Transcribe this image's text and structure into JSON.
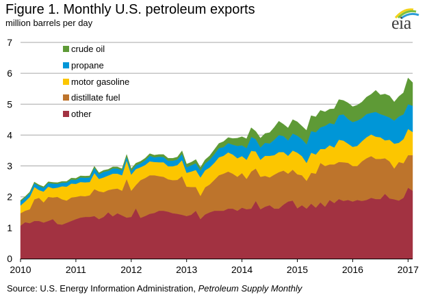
{
  "header": {
    "title": "Figure 1. Monthly U.S. petroleum exports",
    "subtitle": "million barrels per day",
    "logo_text": "eia"
  },
  "source": {
    "prefix": "Source: U.S. Energy Information Administration, ",
    "publication": "Petroleum Supply Monthly"
  },
  "chart_data": {
    "type": "area",
    "stacked": true,
    "title": "Figure 1. Monthly U.S. petroleum exports",
    "ylabel": "million barrels per day",
    "xlabel": "",
    "ylim": [
      0,
      7
    ],
    "yticks": [
      "0",
      "1",
      "2",
      "3",
      "4",
      "5",
      "6",
      "7"
    ],
    "xticks": [
      "2010",
      "2011",
      "2012",
      "2013",
      "2014",
      "2015",
      "2016",
      "2017"
    ],
    "x_start": "2010-01",
    "x_end": "2017-02",
    "frequency": "monthly",
    "grid": "horizontal",
    "legend_position": "top-left",
    "legend_order": [
      "crude oil",
      "propane",
      "motor gasoline",
      "distillate fuel",
      "other"
    ],
    "colors": {
      "other": "#a23241",
      "distillate fuel": "#bd742c",
      "motor gasoline": "#fcc600",
      "propane": "#0096d7",
      "crude oil": "#5e9a36"
    },
    "series": [
      {
        "name": "other",
        "values": [
          1.07,
          1.18,
          1.15,
          1.22,
          1.22,
          1.17,
          1.22,
          1.28,
          1.12,
          1.1,
          1.16,
          1.22,
          1.28,
          1.33,
          1.35,
          1.35,
          1.38,
          1.28,
          1.35,
          1.5,
          1.37,
          1.47,
          1.4,
          1.33,
          1.35,
          1.63,
          1.32,
          1.38,
          1.45,
          1.48,
          1.55,
          1.55,
          1.52,
          1.47,
          1.45,
          1.42,
          1.38,
          1.42,
          1.55,
          1.28,
          1.43,
          1.5,
          1.55,
          1.55,
          1.55,
          1.62,
          1.62,
          1.55,
          1.65,
          1.6,
          1.62,
          1.87,
          1.6,
          1.68,
          1.73,
          1.62,
          1.62,
          1.75,
          1.85,
          1.88,
          1.63,
          1.73,
          1.62,
          1.78,
          1.65,
          1.82,
          1.68,
          1.9,
          1.8,
          1.93,
          1.87,
          1.9,
          1.85,
          1.9,
          1.87,
          1.9,
          1.97,
          1.93,
          1.93,
          2.1,
          1.95,
          1.92,
          1.88,
          1.97,
          2.3,
          2.2
        ]
      },
      {
        "name": "distillate fuel",
        "values": [
          0.4,
          0.37,
          0.45,
          0.7,
          0.75,
          0.65,
          0.78,
          0.7,
          0.88,
          0.82,
          0.72,
          0.76,
          0.72,
          0.7,
          0.67,
          0.7,
          0.87,
          0.9,
          0.8,
          0.72,
          0.88,
          0.8,
          0.8,
          1.25,
          0.85,
          0.75,
          1.22,
          1.23,
          1.25,
          1.22,
          1.12,
          1.1,
          1.05,
          1.07,
          1.1,
          1.25,
          0.95,
          0.9,
          0.77,
          0.75,
          0.88,
          0.9,
          1.0,
          1.15,
          1.2,
          1.2,
          1.13,
          1.1,
          1.12,
          0.98,
          1.2,
          1.05,
          1.05,
          1.0,
          0.9,
          1.1,
          1.18,
          1.1,
          0.9,
          1.0,
          1.1,
          0.97,
          0.9,
          1.0,
          1.1,
          1.28,
          1.32,
          1.15,
          1.25,
          1.2,
          1.25,
          1.2,
          1.15,
          1.1,
          1.28,
          1.35,
          1.35,
          1.3,
          1.3,
          1.15,
          1.2,
          1.0,
          1.25,
          1.12,
          1.05,
          1.15
        ]
      },
      {
        "name": "motor gasoline",
        "values": [
          0.25,
          0.3,
          0.4,
          0.4,
          0.25,
          0.35,
          0.33,
          0.3,
          0.3,
          0.42,
          0.45,
          0.45,
          0.42,
          0.45,
          0.45,
          0.43,
          0.52,
          0.4,
          0.48,
          0.47,
          0.5,
          0.48,
          0.5,
          0.6,
          0.52,
          0.52,
          0.42,
          0.42,
          0.45,
          0.43,
          0.45,
          0.47,
          0.42,
          0.45,
          0.48,
          0.52,
          0.45,
          0.5,
          0.55,
          0.6,
          0.55,
          0.55,
          0.55,
          0.58,
          0.58,
          0.62,
          0.62,
          0.6,
          0.55,
          0.62,
          0.67,
          0.55,
          0.55,
          0.65,
          0.7,
          0.63,
          0.65,
          0.6,
          0.58,
          0.62,
          0.7,
          0.62,
          0.58,
          0.65,
          0.62,
          0.45,
          0.55,
          0.62,
          0.55,
          0.72,
          0.7,
          0.62,
          0.62,
          0.65,
          0.65,
          0.68,
          0.7,
          0.72,
          0.7,
          0.58,
          0.7,
          0.8,
          0.62,
          0.78,
          0.85,
          0.75
        ]
      },
      {
        "name": "propane",
        "values": [
          0.13,
          0.12,
          0.12,
          0.12,
          0.13,
          0.12,
          0.12,
          0.15,
          0.12,
          0.12,
          0.13,
          0.13,
          0.13,
          0.15,
          0.15,
          0.15,
          0.17,
          0.15,
          0.18,
          0.15,
          0.17,
          0.17,
          0.16,
          0.12,
          0.12,
          0.12,
          0.12,
          0.15,
          0.18,
          0.15,
          0.18,
          0.17,
          0.18,
          0.18,
          0.18,
          0.2,
          0.18,
          0.2,
          0.22,
          0.22,
          0.22,
          0.25,
          0.28,
          0.3,
          0.28,
          0.3,
          0.32,
          0.4,
          0.35,
          0.38,
          0.45,
          0.4,
          0.4,
          0.42,
          0.4,
          0.5,
          0.55,
          0.52,
          0.5,
          0.55,
          0.55,
          0.55,
          0.6,
          0.7,
          0.72,
          0.7,
          0.75,
          0.72,
          0.75,
          0.8,
          0.85,
          0.8,
          0.8,
          0.82,
          0.75,
          0.75,
          0.7,
          0.8,
          0.75,
          0.8,
          0.72,
          0.75,
          0.85,
          0.8,
          0.8,
          0.85
        ]
      },
      {
        "name": "crude oil",
        "values": [
          0.04,
          0.04,
          0.04,
          0.04,
          0.04,
          0.04,
          0.04,
          0.04,
          0.04,
          0.04,
          0.04,
          0.05,
          0.05,
          0.05,
          0.05,
          0.05,
          0.05,
          0.05,
          0.05,
          0.05,
          0.05,
          0.05,
          0.05,
          0.07,
          0.07,
          0.07,
          0.07,
          0.07,
          0.07,
          0.07,
          0.07,
          0.08,
          0.08,
          0.08,
          0.08,
          0.1,
          0.1,
          0.1,
          0.12,
          0.1,
          0.12,
          0.13,
          0.15,
          0.15,
          0.18,
          0.18,
          0.2,
          0.25,
          0.28,
          0.3,
          0.3,
          0.25,
          0.3,
          0.3,
          0.35,
          0.4,
          0.45,
          0.38,
          0.4,
          0.45,
          0.45,
          0.42,
          0.45,
          0.5,
          0.5,
          0.55,
          0.45,
          0.45,
          0.5,
          0.5,
          0.45,
          0.52,
          0.5,
          0.5,
          0.52,
          0.55,
          0.6,
          0.7,
          0.62,
          0.7,
          0.7,
          0.6,
          0.65,
          0.7,
          0.85,
          0.75
        ]
      }
    ]
  }
}
